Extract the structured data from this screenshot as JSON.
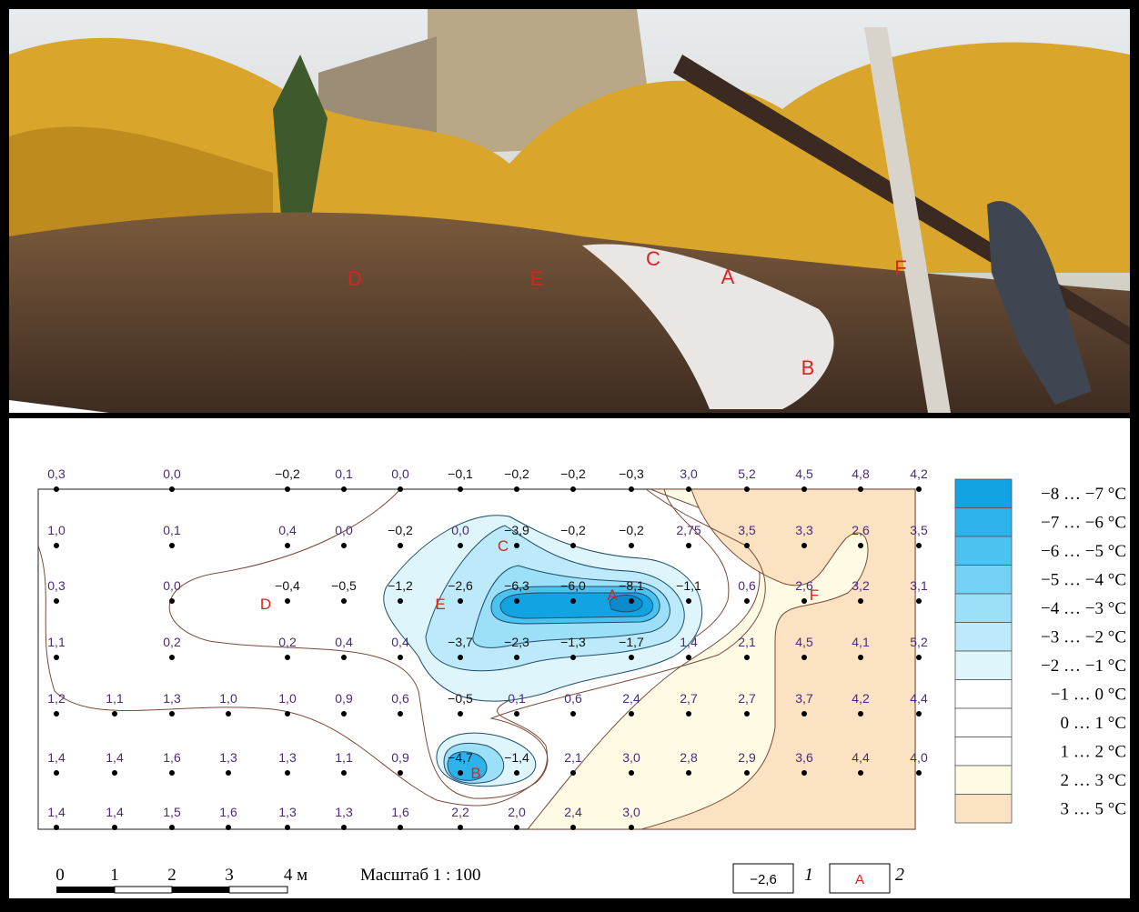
{
  "photo": {
    "markers": [
      "D",
      "E",
      "C",
      "A",
      "F",
      "B"
    ]
  },
  "map": {
    "rows": [
      [
        "0,3",
        "0,0",
        "−0,2",
        "0,1",
        "0,0",
        "−0,1",
        "−0,2",
        "−0,2",
        "−0,3",
        "3,0",
        "5,2",
        "4,5",
        "4,8",
        "4,2"
      ],
      [
        "1,0",
        "0,1",
        "0,4",
        "0,0",
        "−0,2",
        "0,0",
        "−3,9",
        "−0,2",
        "−0,2",
        "2,75",
        "3,5",
        "3,3",
        "2,6",
        "3,5"
      ],
      [
        "0,3",
        "0,0",
        "−0,4",
        "−0,5",
        "−1,2",
        "−2,6",
        "−6,3",
        "−6,0",
        "−8,1",
        "−1,1",
        "0,6",
        "2,6",
        "3,2",
        "3,1"
      ],
      [
        "1,1",
        "0,2",
        "0,2",
        "0,4",
        "0,4",
        "−3,7",
        "−2,3",
        "−1,3",
        "−1,7",
        "1,4",
        "2,1",
        "4,5",
        "4,1",
        "5,2"
      ],
      [
        "1,2",
        "1,1",
        "1,3",
        "1,0",
        "1,0",
        "0,9",
        "0,6",
        "−0,5",
        "0,1",
        "0,6",
        "2,4",
        "2,7",
        "2,7",
        "3,7",
        "4,2",
        "4,4"
      ],
      [
        "1,4",
        "1,4",
        "1,6",
        "1,3",
        "1,3",
        "1,1",
        "0,9",
        "−4,7",
        "−1,4",
        "2,1",
        "3,0",
        "2,8",
        "2,9",
        "3,6",
        "4,4",
        "4,0"
      ],
      [
        "1,4",
        "1,4",
        "1,5",
        "1,6",
        "1,3",
        "1,3",
        "1,6",
        "2,2",
        "2,0",
        "2,4",
        "3,0"
      ]
    ],
    "markers": [
      "C",
      "D",
      "E",
      "A",
      "F",
      "B"
    ]
  },
  "legend": {
    "items": [
      {
        "label": "−8 … −7 °C",
        "color": "#12a3e3"
      },
      {
        "label": "−7 … −6 °C",
        "color": "#2db3ec"
      },
      {
        "label": "−6 … −5 °C",
        "color": "#4cc2f1"
      },
      {
        "label": "−5 … −4 °C",
        "color": "#72d1f5"
      },
      {
        "label": "−4 … −3 °C",
        "color": "#9be0f8"
      },
      {
        "label": "−3 … −2 °C",
        "color": "#bdeafa"
      },
      {
        "label": "−2 … −1 °C",
        "color": "#def5fc"
      },
      {
        "label": "−1 … 0 °C",
        "color": "#ffffff"
      },
      {
        "label": "0 … 1 °C",
        "color": "#ffffff"
      },
      {
        "label": "1 … 2 °C",
        "color": "#ffffff"
      },
      {
        "label": "2 … 3 °C",
        "color": "#fffae3"
      },
      {
        "label": "3 … 5 °C",
        "color": "#fbe2c2"
      }
    ]
  },
  "scale": {
    "ticks": [
      "0",
      "1",
      "2",
      "3",
      "4 м"
    ],
    "label": "Масштаб 1 : 100"
  },
  "key": [
    {
      "sample": "−2,6",
      "number": "1"
    },
    {
      "sample": "A",
      "number": "2"
    }
  ]
}
